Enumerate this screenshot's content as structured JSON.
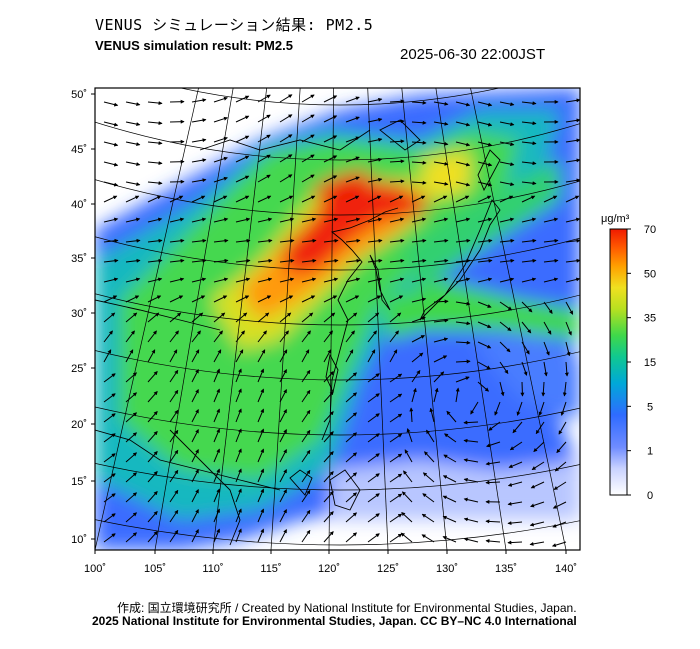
{
  "header": {
    "title_jp": "VENUS シミュレーション結果: PM2.5",
    "title_en": "VENUS simulation result: PM2.5",
    "datetime": "2025-06-30 22:00JST"
  },
  "map": {
    "lon_ticks": [
      "100˚",
      "105˚",
      "110˚",
      "115˚",
      "120˚",
      "125˚",
      "130˚",
      "135˚",
      "140˚"
    ],
    "lat_ticks": [
      "10˚",
      "15˚",
      "20˚",
      "25˚",
      "30˚",
      "35˚",
      "40˚",
      "45˚",
      "50˚"
    ]
  },
  "colorbar": {
    "unit": "μg/m³",
    "ticks": [
      "0",
      "1",
      "5",
      "15",
      "35",
      "50",
      "70"
    ],
    "colors": [
      "#ffffff",
      "#8fa8ff",
      "#2f6bff",
      "#00b4c8",
      "#3fd84a",
      "#f0e020",
      "#ff8a00",
      "#f01a00"
    ]
  },
  "footer": {
    "credit_line1": "作成: 国立環境研究所 / Created by National Institute for Environmental Studies, Japan.",
    "credit_line2": "2025 National Institute for Environmental Studies, Japan. CC BY–NC 4.0 International"
  }
}
